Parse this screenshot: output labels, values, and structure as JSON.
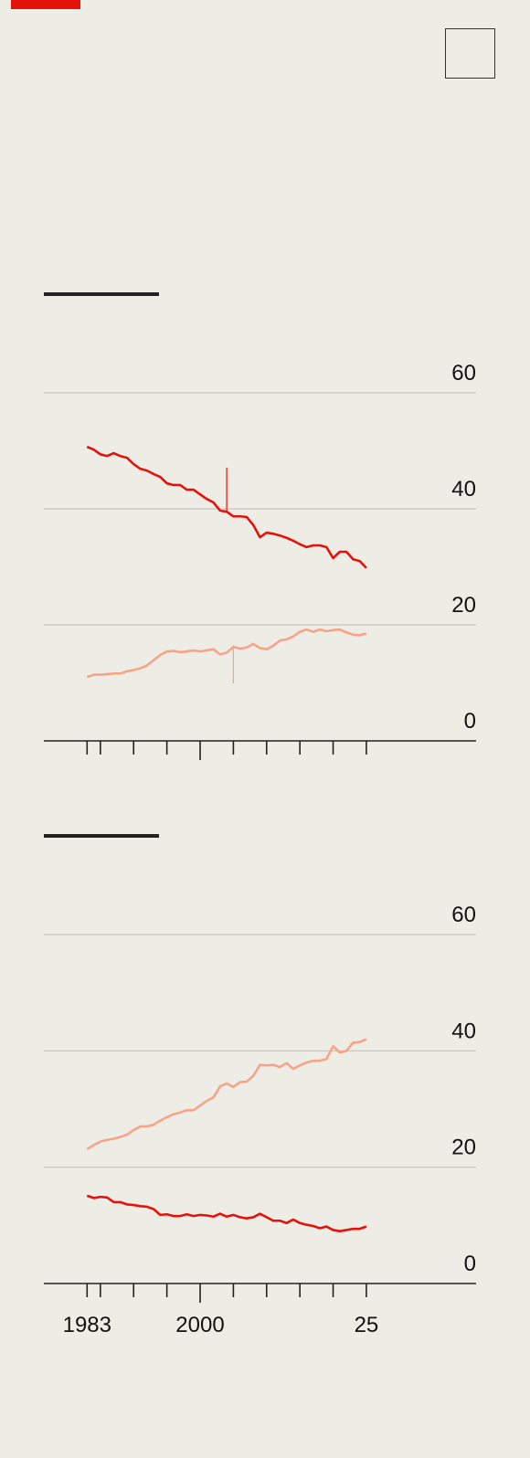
{
  "chart_data": [
    {
      "type": "line",
      "x": [
        1983,
        1984,
        1985,
        1986,
        1987,
        1988,
        1989,
        1990,
        1991,
        1992,
        1993,
        1994,
        1995,
        1996,
        1997,
        1998,
        1999,
        2000,
        2001,
        2002,
        2003,
        2004,
        2005,
        2006,
        2007,
        2008,
        2009,
        2010,
        2011,
        2012,
        2013,
        2014,
        2015,
        2016,
        2017,
        2018,
        2019,
        2020,
        2021,
        2022,
        2023,
        2024,
        2025
      ],
      "series": [
        {
          "color": "#e3120b",
          "values": [
            50.7,
            50.2,
            49.4,
            49.1,
            49.6,
            49.1,
            48.8,
            47.7,
            46.9,
            46.6,
            46.0,
            45.5,
            44.4,
            44.1,
            44.1,
            43.3,
            43.3,
            42.5,
            41.7,
            41.1,
            39.7,
            39.5,
            38.7,
            38.7,
            38.6,
            37.2,
            35.1,
            35.9,
            35.7,
            35.4,
            35.0,
            34.5,
            33.9,
            33.4,
            33.7,
            33.7,
            33.4,
            31.5,
            32.6,
            32.6,
            31.3,
            31.0,
            29.8
          ]
        },
        {
          "color": "#f6a38a",
          "values": [
            11.0,
            11.4,
            11.4,
            11.5,
            11.6,
            11.6,
            12.0,
            12.2,
            12.5,
            13.0,
            13.9,
            14.8,
            15.4,
            15.5,
            15.3,
            15.4,
            15.6,
            15.4,
            15.6,
            15.8,
            14.9,
            15.2,
            16.2,
            15.9,
            16.1,
            16.7,
            16.0,
            15.8,
            16.4,
            17.3,
            17.5,
            18.0,
            18.8,
            19.2,
            18.8,
            19.2,
            18.9,
            19.1,
            19.2,
            18.7,
            18.3,
            18.2,
            18.5
          ]
        }
      ],
      "markers": [
        {
          "x": 2004,
          "y": [
            47.1,
            39.5
          ],
          "color": "#e3120b"
        },
        {
          "x": 2005,
          "y": [
            16.5,
            9.9
          ],
          "color": "#f6a38a"
        }
      ],
      "xlim": [
        1976.5,
        2041.5
      ],
      "xticks": [
        {
          "value": 1983,
          "label": null
        },
        {
          "value": 1985,
          "label": null
        },
        {
          "value": 1990,
          "label": null
        },
        {
          "value": 1995,
          "label": null
        },
        {
          "value": 2000,
          "label": null
        },
        {
          "value": 2005,
          "label": null
        },
        {
          "value": 2010,
          "label": null
        },
        {
          "value": 2015,
          "label": null
        },
        {
          "value": 2020,
          "label": null
        },
        {
          "value": 2025,
          "label": null
        }
      ],
      "ylim": [
        0,
        60
      ],
      "yticks": [
        0,
        20,
        40,
        60
      ],
      "grid": true
    },
    {
      "type": "line",
      "x": [
        1983,
        1984,
        1985,
        1986,
        1987,
        1988,
        1989,
        1990,
        1991,
        1992,
        1993,
        1994,
        1995,
        1996,
        1997,
        1998,
        1999,
        2000,
        2001,
        2002,
        2003,
        2004,
        2005,
        2006,
        2007,
        2008,
        2009,
        2010,
        2011,
        2012,
        2013,
        2014,
        2015,
        2016,
        2017,
        2018,
        2019,
        2020,
        2021,
        2022,
        2023,
        2024,
        2025
      ],
      "series": [
        {
          "color": "#f6a38a",
          "values": [
            23.1,
            23.8,
            24.4,
            24.7,
            24.9,
            25.2,
            25.6,
            26.4,
            27.0,
            27.0,
            27.3,
            28.0,
            28.6,
            29.1,
            29.4,
            29.8,
            29.8,
            30.6,
            31.4,
            32.0,
            33.9,
            34.4,
            33.8,
            34.6,
            34.7,
            35.7,
            37.6,
            37.5,
            37.6,
            37.2,
            37.9,
            36.9,
            37.5,
            38.0,
            38.3,
            38.3,
            38.6,
            40.8,
            39.7,
            40.0,
            41.4,
            41.5,
            42.0
          ]
        },
        {
          "color": "#e3120b",
          "values": [
            15.1,
            14.7,
            14.9,
            14.8,
            14.0,
            14.0,
            13.6,
            13.5,
            13.3,
            13.2,
            12.8,
            11.8,
            11.9,
            11.6,
            11.6,
            11.9,
            11.6,
            11.8,
            11.7,
            11.5,
            12.0,
            11.5,
            11.8,
            11.4,
            11.2,
            11.4,
            12.0,
            11.4,
            10.8,
            10.8,
            10.4,
            11.0,
            10.4,
            10.1,
            9.9,
            9.5,
            9.8,
            9.2,
            9.0,
            9.2,
            9.4,
            9.4,
            9.8
          ]
        }
      ],
      "xlim": [
        1976.5,
        2041.5
      ],
      "xticks": [
        1983,
        {
          "value": 1985,
          "label": null
        },
        {
          "value": 1990,
          "label": null
        },
        {
          "value": 1995,
          "label": null
        },
        2000,
        {
          "value": 2005,
          "label": null
        },
        {
          "value": 2010,
          "label": null
        },
        {
          "value": 2015,
          "label": null
        },
        {
          "value": 2020,
          "label": null
        },
        {
          "value": 2025,
          "label": "25"
        }
      ],
      "ylim": [
        0,
        60
      ],
      "yticks": [
        0,
        20,
        40,
        60
      ],
      "grid": true
    }
  ]
}
